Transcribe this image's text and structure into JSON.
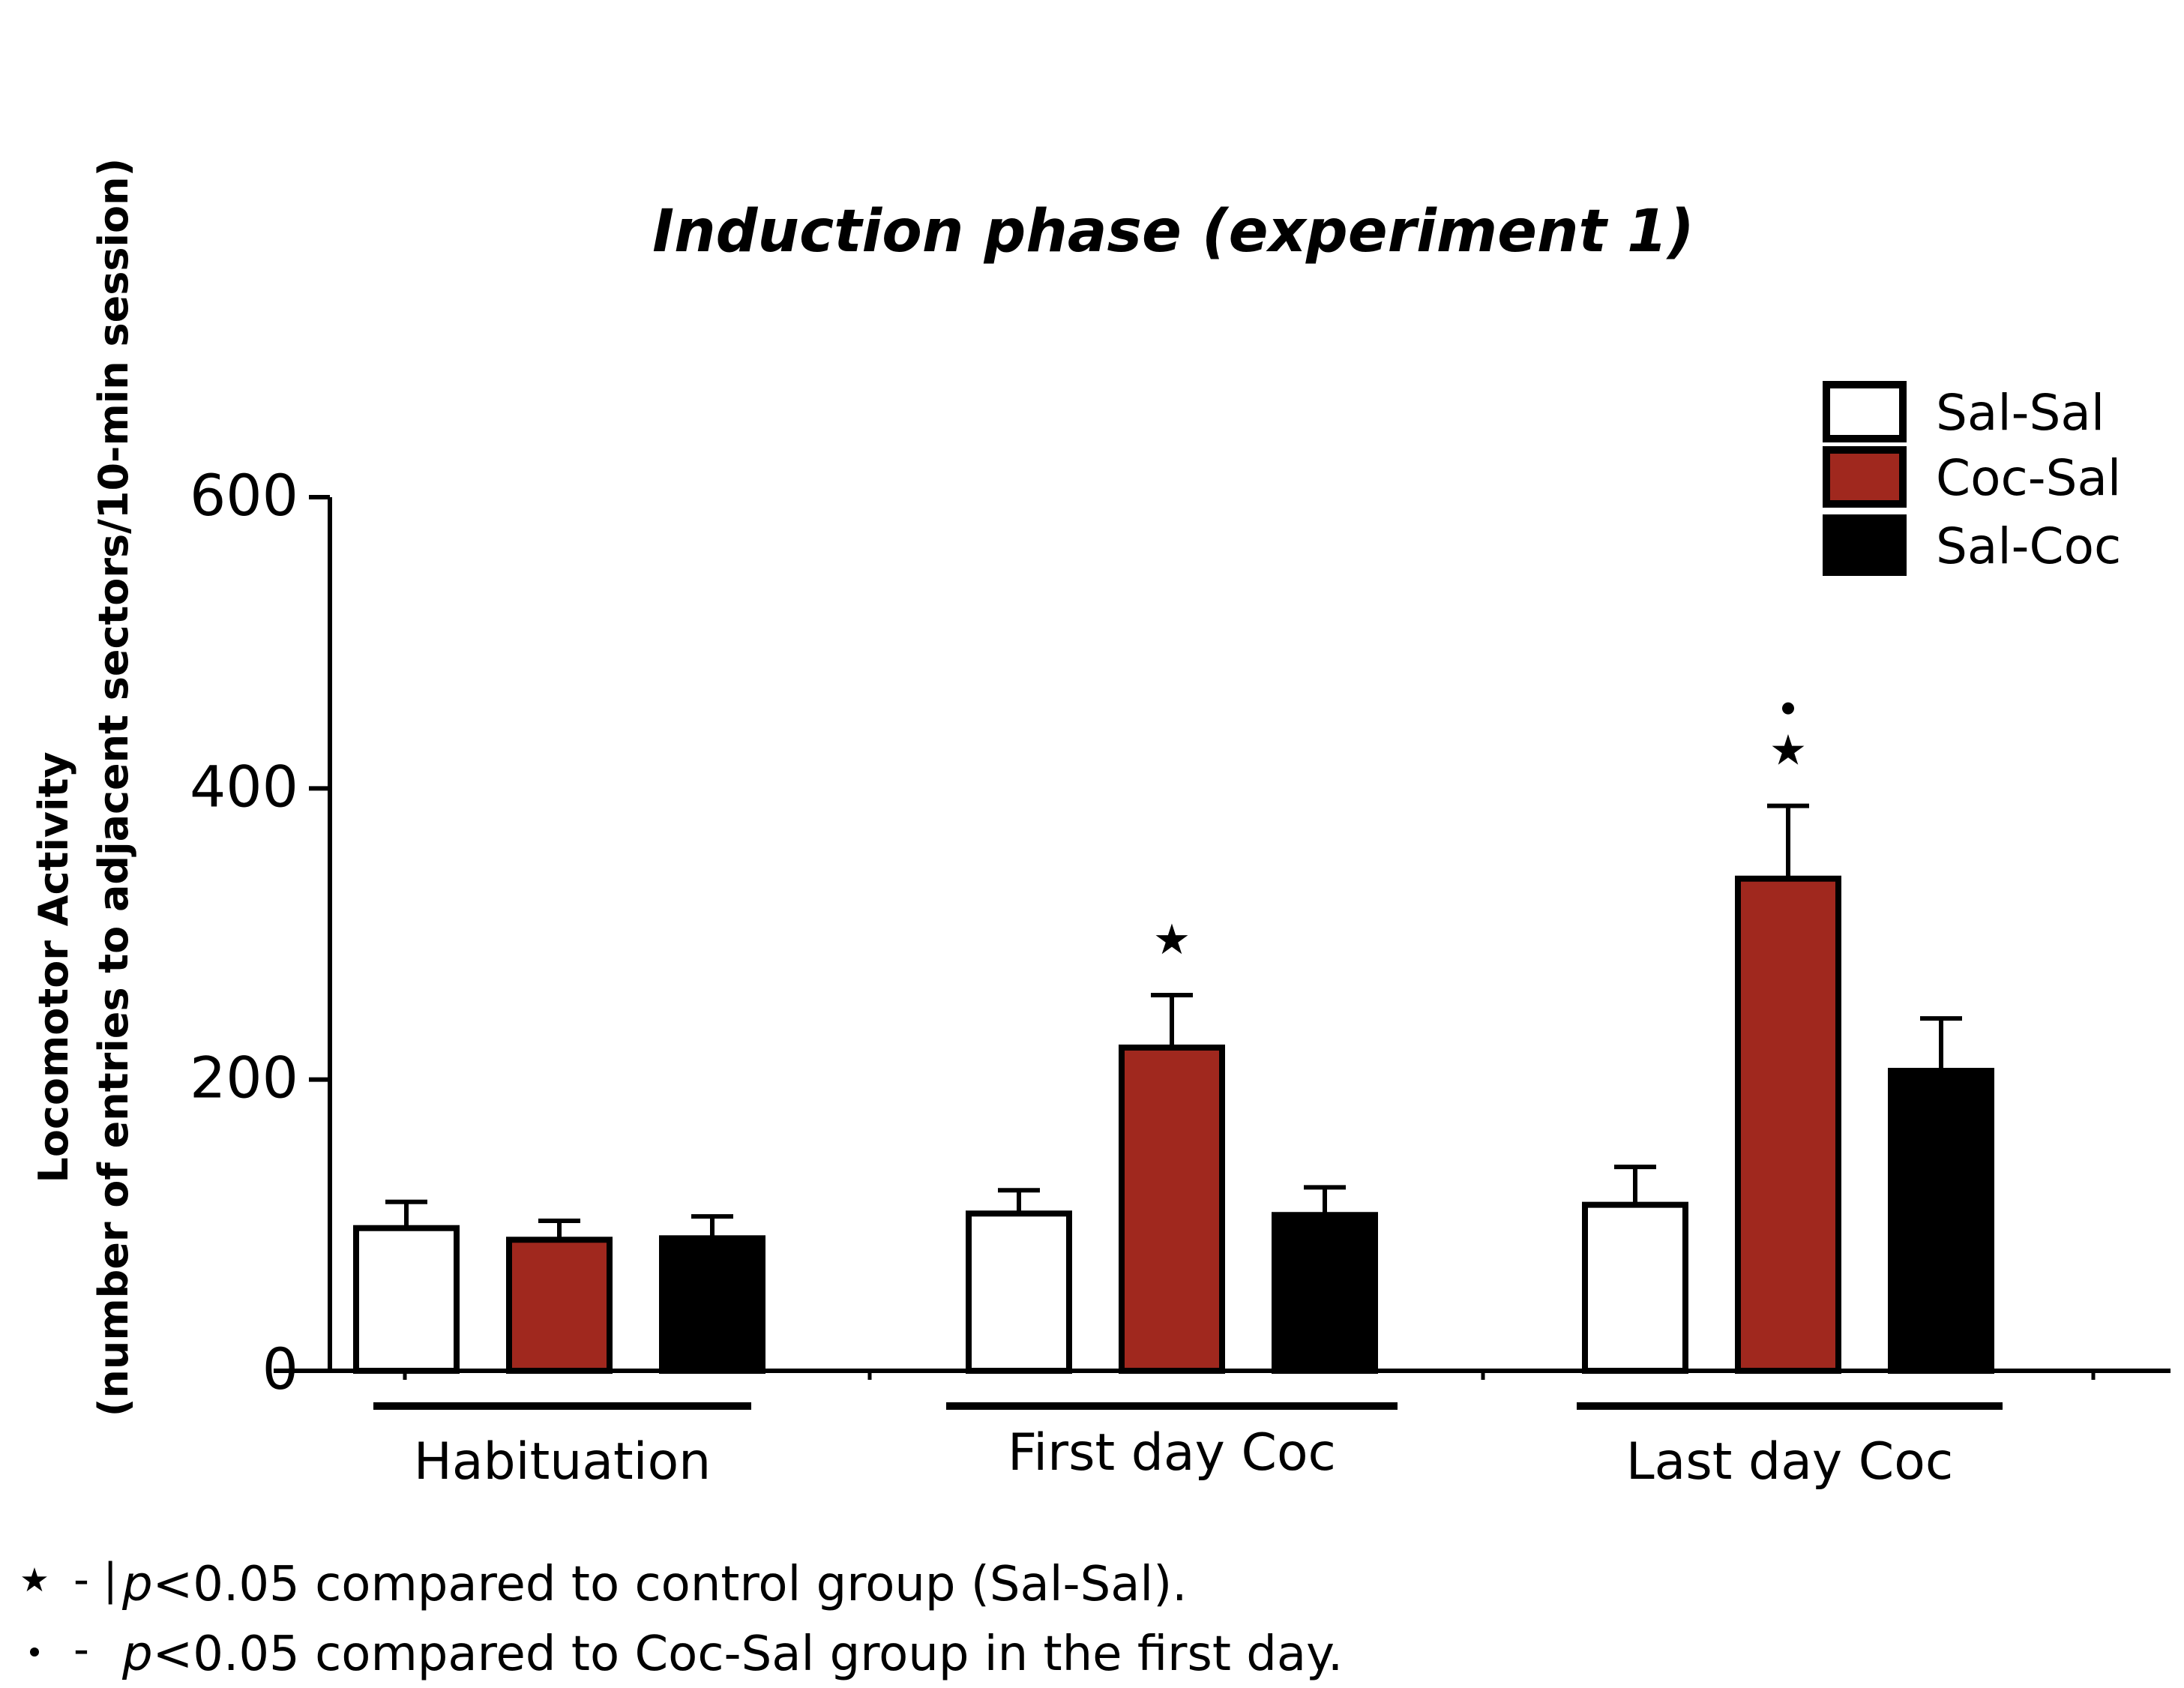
{
  "chart_data": {
    "type": "bar",
    "title": "Induction phase (experiment 1)",
    "ylabel_line1": "Locomotor Activity",
    "ylabel_line2": "(number of entries to adjacent sectors/10-min session)",
    "xlabel": "",
    "ylim": [
      0,
      600
    ],
    "yticks": [
      0,
      200,
      400,
      600
    ],
    "categories": [
      "Habituation",
      "First day Coc",
      "Last day Coc"
    ],
    "series": [
      {
        "name": "Sal-Sal",
        "color": "#ffffff",
        "values": [
          98,
          108,
          114
        ],
        "errors": [
          18,
          16,
          26
        ]
      },
      {
        "name": "Coc-Sal",
        "color": "#a0281e",
        "values": [
          90,
          222,
          338
        ],
        "errors": [
          13,
          36,
          50
        ]
      },
      {
        "name": "Sal-Coc",
        "color": "#000000",
        "values": [
          91,
          107,
          206
        ],
        "errors": [
          15,
          19,
          36
        ]
      }
    ],
    "annotations": [
      {
        "category": "First day Coc",
        "series": "Coc-Sal",
        "symbol": "★"
      },
      {
        "category": "Last day Coc",
        "series": "Coc-Sal",
        "symbol": "★"
      },
      {
        "category": "Last day Coc",
        "series": "Coc-Sal",
        "symbol": "•"
      }
    ],
    "legend_position": "top-right",
    "footnotes": [
      {
        "symbol": "★",
        "dash": "- |",
        "p_label": "p",
        "text": "<0.05 compared to control group (Sal-Sal)."
      },
      {
        "symbol": "•",
        "dash": "-",
        "p_label": "p",
        "text": "<0.05 compared to Coc-Sal group in the first day."
      }
    ]
  }
}
